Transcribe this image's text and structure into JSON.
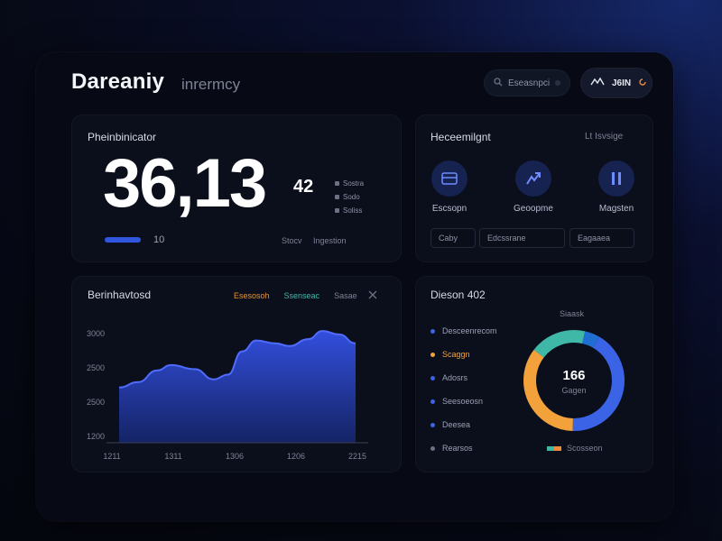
{
  "header": {
    "brand": "Dareaniy",
    "subtitle": "inrermcy",
    "search_text": "Eseasnpcio",
    "user_label": "J6IN",
    "search_icon": "search-icon",
    "user_icon": "user-icon",
    "status_icon": "refresh-icon"
  },
  "summary_card": {
    "title": "Pheinbinicator",
    "value": "36,13",
    "suffix": "42",
    "legend": [
      "Sostra",
      "Sodo",
      "Soliss"
    ],
    "progress_value": "10",
    "footnote_a": "Stocv",
    "footnote_b": "Ingestion"
  },
  "management_card": {
    "title": "Heceemilgnt",
    "title_right": "Lt Isvsige",
    "actions": [
      {
        "label": "Escsopn",
        "icon": "window-icon"
      },
      {
        "label": "Geoopme",
        "icon": "chart-icon"
      },
      {
        "label": "Magsten",
        "icon": "pause-icon"
      }
    ],
    "fields": [
      "Caby",
      "Edcssrane",
      "Eagaaea"
    ]
  },
  "area_card": {
    "title": "Berinhavtosd",
    "tabs": [
      {
        "label": "Esesosoh",
        "color": "#e8922f"
      },
      {
        "label": "Ssenseac",
        "color": "#3fb8a8"
      },
      {
        "label": "Sasae",
        "color": "#7d8396"
      }
    ],
    "close_icon": "close-icon"
  },
  "donut_card": {
    "title": "Dieson 402",
    "center_top": "Siaask",
    "center_value": "166",
    "center_sub": "Gagen",
    "legend": [
      {
        "label": "Desceenrecom",
        "color": "#3a63e6"
      },
      {
        "label": "Scaggn",
        "color": "#f3a13a"
      },
      {
        "label": "Adosrs",
        "color": "#3a63e6"
      },
      {
        "label": "Seesoeosn",
        "color": "#3a63e6"
      },
      {
        "label": "Deesea",
        "color": "#3a63e6"
      },
      {
        "label": "Rearsos",
        "color": "#6b7186"
      }
    ],
    "bottom_label": "Scosseon"
  },
  "chart_data": [
    {
      "type": "area",
      "x": [
        "1211",
        "1311",
        "1306",
        "1206",
        "2215"
      ],
      "ylim": [
        1200,
        3000
      ],
      "yticks": [
        "3000",
        "2500",
        "2500",
        "1200"
      ],
      "series": [
        {
          "color": "#2f4fd8",
          "points": [
            [
              0,
              2010
            ],
            [
              0.08,
              2090
            ],
            [
              0.16,
              2260
            ],
            [
              0.22,
              2340
            ],
            [
              0.32,
              2280
            ],
            [
              0.4,
              2130
            ],
            [
              0.46,
              2200
            ],
            [
              0.52,
              2540
            ],
            [
              0.58,
              2700
            ],
            [
              0.66,
              2660
            ],
            [
              0.72,
              2620
            ],
            [
              0.8,
              2720
            ],
            [
              0.86,
              2840
            ],
            [
              0.93,
              2790
            ],
            [
              1.0,
              2660
            ]
          ]
        }
      ]
    },
    {
      "type": "pie",
      "slices": [
        {
          "value": 42,
          "color": "#3a63e6"
        },
        {
          "value": 35,
          "color": "#f3a13a"
        },
        {
          "value": 18,
          "color": "#3fb8a8"
        },
        {
          "value": 5,
          "color": "#1e6fd1"
        }
      ],
      "donut": true
    }
  ]
}
